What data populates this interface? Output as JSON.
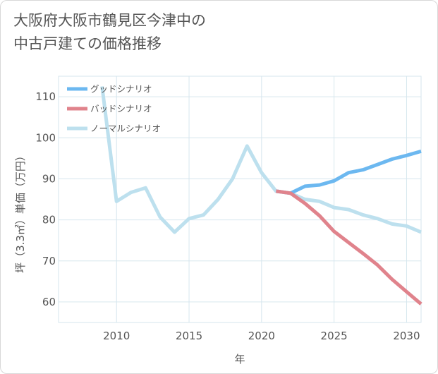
{
  "title_lines": [
    "大阪府大阪市鶴見区今津中の",
    "中古戸建ての価格推移"
  ],
  "chart_data": {
    "type": "line",
    "xlabel": "年",
    "ylabel": "坪（3.3㎡）単価（万円）",
    "xlim": [
      2006,
      2031
    ],
    "ylim": [
      55,
      115
    ],
    "x_ticks": [
      2010,
      2015,
      2020,
      2025,
      2030
    ],
    "y_ticks": [
      60,
      70,
      80,
      90,
      100,
      110
    ],
    "grid": true,
    "legend_position": "top-left",
    "series": [
      {
        "name": "グッドシナリオ",
        "color": "#6cb8f0",
        "x": [
          2021,
          2022,
          2023,
          2024,
          2025,
          2026,
          2027,
          2028,
          2029,
          2030,
          2031
        ],
        "y": [
          87,
          86.5,
          88.2,
          88.5,
          89.5,
          91.5,
          92.2,
          93.5,
          94.8,
          95.7,
          96.7
        ]
      },
      {
        "name": "バッドシナリオ",
        "color": "#e0838c",
        "x": [
          2021,
          2022,
          2023,
          2024,
          2025,
          2026,
          2027,
          2028,
          2029,
          2030,
          2031
        ],
        "y": [
          87,
          86.5,
          84,
          81,
          77.2,
          74.5,
          71.8,
          69,
          65.5,
          62.5,
          59.5
        ]
      },
      {
        "name": "ノーマルシナリオ",
        "color": "#bde0ee",
        "x": [
          2009,
          2010,
          2011,
          2012,
          2013,
          2014,
          2015,
          2016,
          2017,
          2018,
          2019,
          2020,
          2021,
          2022,
          2023,
          2024,
          2025,
          2026,
          2027,
          2028,
          2029,
          2030,
          2031
        ],
        "y": [
          112.5,
          84.5,
          86.7,
          87.8,
          80.7,
          77,
          80.3,
          81.2,
          85,
          90,
          98,
          91.5,
          87,
          86.5,
          85,
          84.5,
          83,
          82.5,
          81.2,
          80.3,
          79,
          78.5,
          77
        ]
      }
    ]
  }
}
